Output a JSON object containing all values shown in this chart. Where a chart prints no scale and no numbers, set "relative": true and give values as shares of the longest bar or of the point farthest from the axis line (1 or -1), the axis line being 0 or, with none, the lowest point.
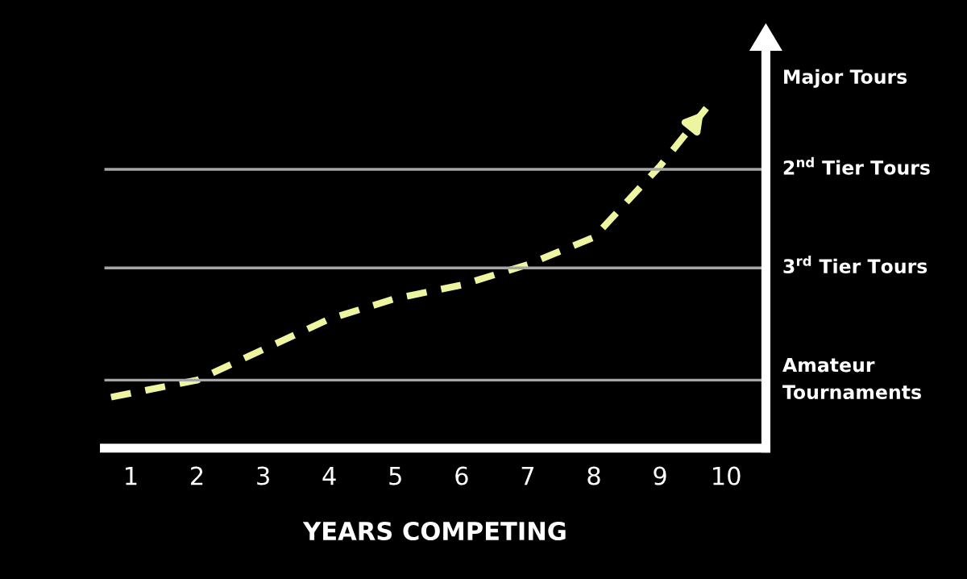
{
  "chart_data": {
    "type": "line",
    "relative": true,
    "xlabel": "YEARS COMPETING",
    "x": [
      0.7,
      2,
      3,
      4,
      5,
      6,
      7,
      8,
      9,
      9.7
    ],
    "xlim": [
      0.6,
      10.6
    ],
    "xticks": [
      1,
      2,
      3,
      4,
      5,
      6,
      7,
      8,
      9,
      10
    ],
    "series": [
      {
        "color": "#eef5a0",
        "values": [
          0.15,
          0.2,
          0.29,
          0.38,
          0.44,
          0.48,
          0.54,
          0.62,
          0.83,
          1.0
        ]
      }
    ],
    "line_style": "dashed",
    "marker": "none",
    "grid": false,
    "legend": false,
    "ref_lines": [
      {
        "axis": "y",
        "value": 0.2,
        "label": "Amateur\nTournaments",
        "color": "#a6a6a6"
      },
      {
        "axis": "y",
        "value": 0.53,
        "label": "3$^{rd}$ Tier Tours",
        "color": "#a6a6a6"
      },
      {
        "axis": "y",
        "value": 0.82,
        "label": "2$^{nd}$ Tier Tours",
        "color": "#a6a6a6"
      }
    ],
    "annotations": [
      "Major Tours"
    ]
  }
}
